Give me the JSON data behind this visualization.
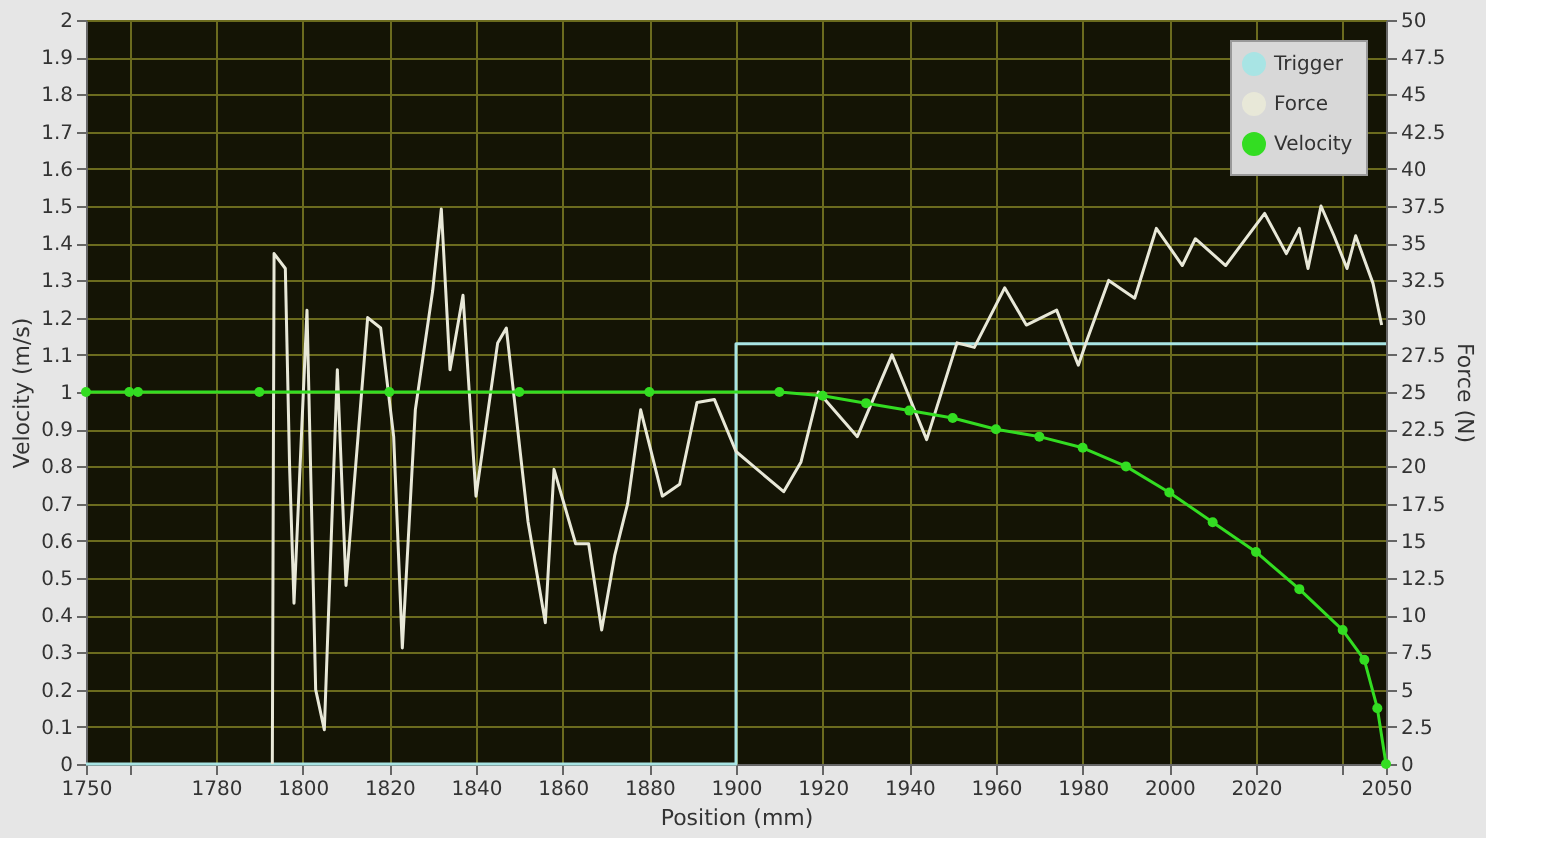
{
  "chart_data": {
    "type": "line",
    "xlabel": "Position (mm)",
    "ylabel": "Velocity (m/s)",
    "y2label": "Force (N)",
    "xlim": [
      1750,
      2050
    ],
    "xticks": [
      1750,
      {
        "value": 1760,
        "label": null
      },
      1780,
      1800,
      1820,
      1840,
      1860,
      1880,
      1900,
      1920,
      1940,
      1960,
      1980,
      2000,
      2020,
      {
        "value": 2040,
        "label": null
      },
      2050
    ],
    "ylim": [
      0,
      2
    ],
    "yticks": [
      0,
      0.1,
      0.2,
      0.3,
      0.4,
      0.5,
      0.6,
      0.7,
      0.8,
      0.9,
      1,
      1.1,
      1.2,
      1.3,
      1.4,
      1.5,
      1.6,
      1.7,
      1.8,
      1.9,
      2
    ],
    "y2lim": [
      0,
      50
    ],
    "y2ticks": [
      0,
      2.5,
      5,
      7.5,
      10,
      12.5,
      15,
      17.5,
      20,
      22.5,
      25,
      27.5,
      30,
      32.5,
      35,
      37.5,
      40,
      42.5,
      45,
      47.5,
      50
    ],
    "grid": true,
    "legend": "top right",
    "series": [
      {
        "name": "Trigger",
        "color": "#a8e4e4",
        "marker": "none",
        "x": [
          1750,
          1900,
          1900,
          2050
        ],
        "values": [
          0,
          0,
          1.13,
          1.13
        ]
      },
      {
        "name": "Force",
        "color": "#e8e8d8",
        "marker": "none",
        "axis": "y2",
        "x": [
          1793,
          1793.4,
          1796,
          1797,
          1798,
          1801,
          1803,
          1805,
          1808,
          1810,
          1815,
          1818,
          1821,
          1823,
          1826,
          1830,
          1832,
          1834,
          1837,
          1840,
          1845,
          1847,
          1852,
          1856,
          1858,
          1863,
          1866,
          1869,
          1872,
          1875,
          1878,
          1883,
          1887,
          1891,
          1895,
          1900,
          1911,
          1915,
          1919,
          1928,
          1936,
          1944,
          1951,
          1955,
          1962,
          1967,
          1974,
          1979,
          1981,
          1986,
          1992,
          1997,
          2003,
          2006,
          2013,
          2022,
          2027,
          2030,
          2032,
          2035,
          2038,
          2041,
          2043,
          2047,
          2049
        ],
        "values": [
          0,
          34.3,
          33.3,
          19.8,
          10.8,
          30.5,
          5,
          2.3,
          26.5,
          12,
          30,
          29.3,
          22,
          7.8,
          23.8,
          31.8,
          37.3,
          26.5,
          31.5,
          18,
          28.3,
          29.3,
          16.3,
          9.5,
          19.8,
          14.8,
          14.8,
          9,
          14,
          17.5,
          23.8,
          18,
          18.8,
          24.3,
          24.5,
          21,
          18.3,
          20.3,
          25,
          22,
          27.5,
          21.8,
          28.3,
          28,
          32,
          29.5,
          30.5,
          26.8,
          28.5,
          32.5,
          31.3,
          36,
          33.5,
          35.3,
          33.5,
          37,
          34.3,
          36,
          33.3,
          37.5,
          35.5,
          33.3,
          35.5,
          32.3,
          29.5
        ]
      },
      {
        "name": "Velocity",
        "color": "#33dd22",
        "marker": "circle",
        "x": [
          1750,
          1760,
          1762,
          1790,
          1820,
          1850,
          1880,
          1910,
          1920,
          1930,
          1940,
          1950,
          1960,
          1970,
          1980,
          1990,
          2000,
          2010,
          2020,
          2030,
          2040,
          2045,
          2048,
          2050
        ],
        "values": [
          1,
          1,
          1,
          1,
          1,
          1,
          1,
          1,
          0.99,
          0.97,
          0.95,
          0.93,
          0.9,
          0.88,
          0.85,
          0.8,
          0.73,
          0.65,
          0.57,
          0.47,
          0.36,
          0.28,
          0.15,
          0
        ]
      }
    ]
  }
}
